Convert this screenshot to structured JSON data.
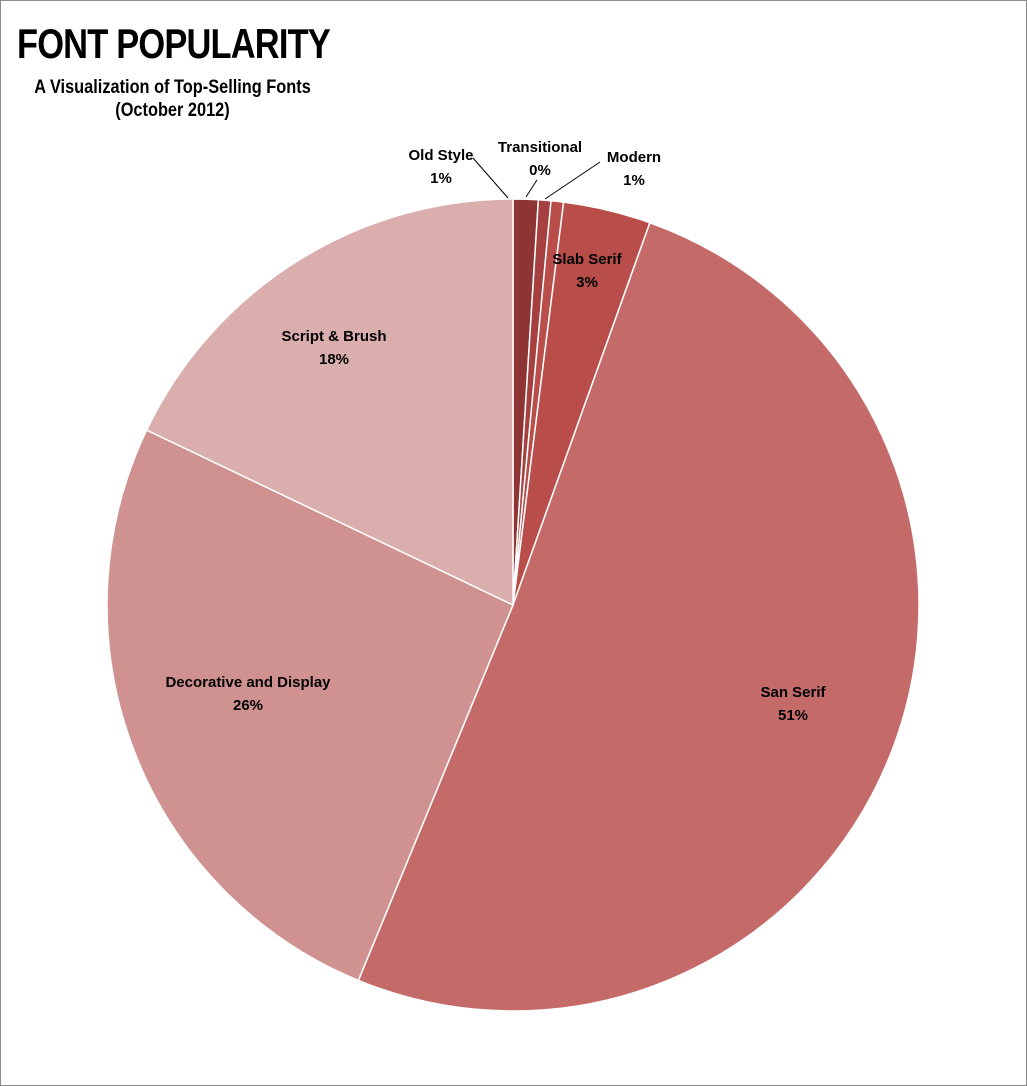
{
  "chart_data": {
    "type": "pie",
    "title": "FONT POPULARITY",
    "subtitle_lines": [
      "A Visualization of Top-Selling Fonts",
      "(October 2012)"
    ],
    "slices": [
      {
        "name": "Old Style",
        "value": 1,
        "label": "1%",
        "color": "#8e3434"
      },
      {
        "name": "Transitional",
        "value": 0.5,
        "label": "0%",
        "color": "#a63f3f"
      },
      {
        "name": "Modern",
        "value": 0.5,
        "label": "1%",
        "color": "#b84d49"
      },
      {
        "name": "Slab Serif",
        "value": 3.5,
        "label": "3%",
        "color": "#b84d49"
      },
      {
        "name": "San Serif",
        "value": 51,
        "label": "51%",
        "color": "#c46a69"
      },
      {
        "name": "Decorative and Display",
        "value": 26,
        "label": "26%",
        "color": "#d09290"
      },
      {
        "name": "Script & Brush",
        "value": 18,
        "label": "18%",
        "color": "#dbaeae"
      }
    ]
  }
}
